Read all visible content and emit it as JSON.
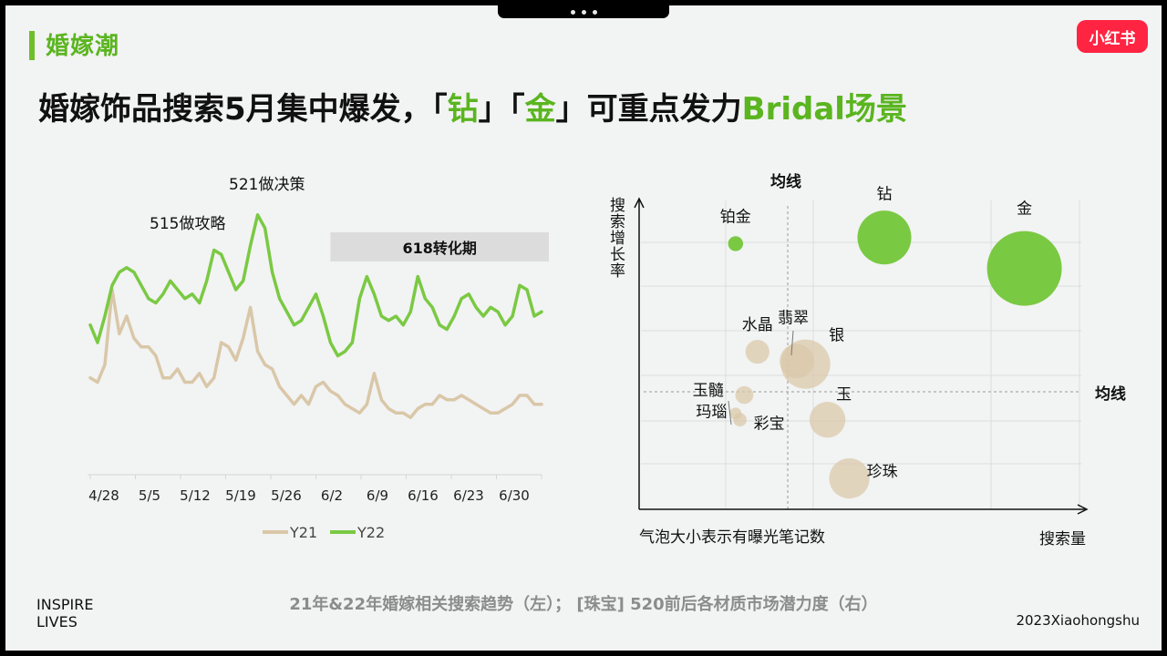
{
  "section_title": "婚嫁潮",
  "logo_text": "小红书",
  "headline": {
    "part1": "婚嫁饰品搜索5月集中爆发，「",
    "diamond": "钻",
    "mid": "」「",
    "gold": "金",
    "part2": "」可重点发力",
    "bridal": "Bridal场景"
  },
  "caption": "21年&22年婚嫁相关搜索趋势（左）；  [珠宝] 520前后各材质市场潜力度（右）",
  "footer": {
    "inspire_line1": "INSPIRE",
    "inspire_line2": "LIVES",
    "brand": "2023Xiaohongshu"
  },
  "colors": {
    "accent_green": "#7ac943",
    "tan": "#d9c7a8",
    "headline_green": "#5ab51f",
    "logo_red": "#ff2442"
  },
  "chart_data": [
    {
      "type": "line",
      "x_tick_labels": [
        "4/28",
        "5/5",
        "5/12",
        "5/19",
        "5/26",
        "6/2",
        "6/9",
        "6/16",
        "6/23",
        "6/30"
      ],
      "y_axis_visible": false,
      "grid": false,
      "legend_position": "bottom",
      "annotations": [
        "515做攻略",
        "521做决策"
      ],
      "shaded_region": {
        "label": "618转化期",
        "from_index": 33,
        "to_index": 63
      },
      "series": [
        {
          "name": "Y21",
          "color": "#d9c7a8",
          "values": [
            42,
            41,
            45,
            62,
            52,
            56,
            51,
            49,
            49,
            47,
            42,
            42,
            44,
            41,
            41,
            43,
            40,
            42,
            50,
            49,
            46,
            51,
            58,
            48,
            45,
            44,
            40,
            38,
            36,
            38,
            36,
            40,
            41,
            39,
            38,
            36,
            35,
            34,
            36,
            43,
            37,
            35,
            34,
            34,
            33,
            35,
            36,
            36,
            38,
            37,
            37,
            38,
            37,
            36,
            35,
            34,
            34,
            35,
            36,
            38,
            38,
            36,
            36
          ]
        },
        {
          "name": "Y22",
          "color": "#7ac943",
          "values": [
            54,
            50,
            56,
            63,
            66,
            67,
            66,
            63,
            60,
            59,
            61,
            64,
            62,
            60,
            61,
            59,
            64,
            71,
            70,
            66,
            62,
            64,
            72,
            79,
            76,
            66,
            60,
            57,
            54,
            55,
            58,
            61,
            56,
            50,
            47,
            48,
            50,
            60,
            65,
            61,
            56,
            55,
            56,
            54,
            57,
            65,
            60,
            58,
            54,
            53,
            56,
            60,
            61,
            58,
            56,
            58,
            57,
            54,
            56,
            63,
            62,
            56,
            57
          ]
        }
      ]
    },
    {
      "type": "scatter",
      "subtype": "bubble",
      "xlabel": "搜索量",
      "ylabel": "搜索增长率",
      "note": "气泡大小表示有曝光笔记数",
      "reference_lines": {
        "vertical": "均线",
        "horizontal": "均线"
      },
      "grid": true,
      "points": [
        {
          "name": "铂金",
          "x": 2.1,
          "y": 8.6,
          "size": 1.0,
          "color": "#7ac943"
        },
        {
          "name": "钻",
          "x": 5.5,
          "y": 8.8,
          "size": 3.6,
          "color": "#7ac943"
        },
        {
          "name": "金",
          "x": 8.7,
          "y": 7.8,
          "size": 5.0,
          "color": "#7ac943"
        },
        {
          "name": "水晶",
          "x": 2.6,
          "y": 5.1,
          "size": 1.6,
          "color": "#d9c7a8"
        },
        {
          "name": "翡翠",
          "x": 3.5,
          "y": 4.8,
          "size": 2.3,
          "color": "#d9c7a8"
        },
        {
          "name": "银",
          "x": 3.7,
          "y": 4.7,
          "size": 3.3,
          "color": "#d9c7a8"
        },
        {
          "name": "玛瑙",
          "x": 2.3,
          "y": 3.7,
          "size": 1.2,
          "color": "#d9c7a8"
        },
        {
          "name": "玉髓",
          "x": 2.1,
          "y": 3.1,
          "size": 0.8,
          "color": "#d9c7a8"
        },
        {
          "name": "彩宝",
          "x": 2.2,
          "y": 2.9,
          "size": 0.9,
          "color": "#d9c7a8"
        },
        {
          "name": "玉",
          "x": 4.2,
          "y": 2.9,
          "size": 2.4,
          "color": "#d9c7a8"
        },
        {
          "name": "珍珠",
          "x": 4.7,
          "y": 1.0,
          "size": 2.7,
          "color": "#d9c7a8"
        }
      ]
    }
  ]
}
